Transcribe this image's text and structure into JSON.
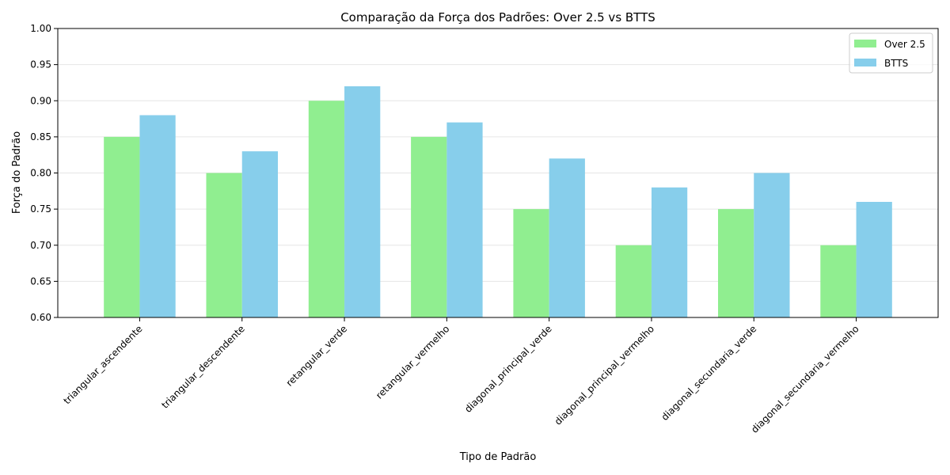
{
  "chart_data": {
    "type": "bar",
    "title": "Comparação da Força dos Padrões: Over 2.5 vs BTTS",
    "xlabel": "Tipo de Padrão",
    "ylabel": "Força do Padrão",
    "ylim": [
      0.6,
      1.0
    ],
    "yticks": [
      "0.60",
      "0.65",
      "0.70",
      "0.75",
      "0.80",
      "0.85",
      "0.90",
      "0.95",
      "1.00"
    ],
    "grid": "horizontal",
    "legend_position": "top-right",
    "categories": [
      "triangular_ascendente",
      "triangular_descendente",
      "retangular_verde",
      "retangular_vermelho",
      "diagonal_principal_verde",
      "diagonal_principal_vermelho",
      "diagonal_secundaria_verde",
      "diagonal_secundaria_vermelho"
    ],
    "series": [
      {
        "name": "Over 2.5",
        "color": "#90ee90",
        "values": [
          0.85,
          0.8,
          0.9,
          0.85,
          0.75,
          0.7,
          0.75,
          0.7
        ]
      },
      {
        "name": "BTTS",
        "color": "#87ceeb",
        "values": [
          0.88,
          0.83,
          0.92,
          0.87,
          0.82,
          0.78,
          0.8,
          0.76
        ]
      }
    ]
  }
}
